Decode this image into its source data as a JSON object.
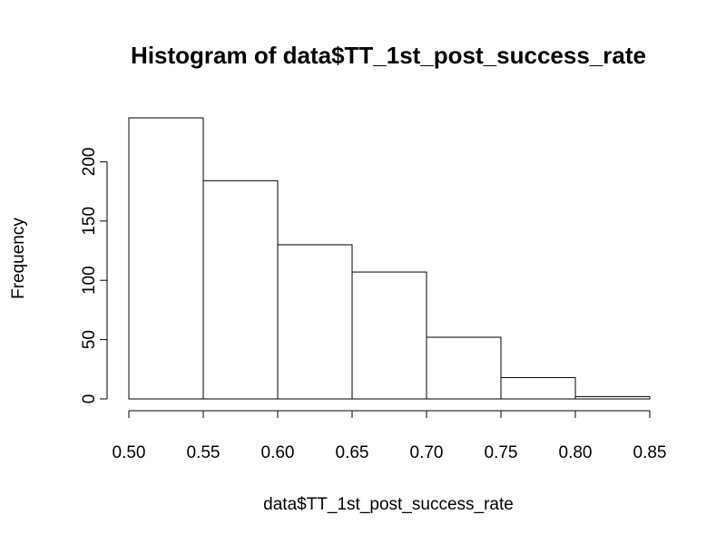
{
  "chart_data": {
    "type": "bar",
    "title": "Histogram of data$TT_1st_post_success_rate",
    "xlabel": "data$TT_1st_post_success_rate",
    "ylabel": "Frequency",
    "bins": [
      {
        "start": 0.5,
        "end": 0.55,
        "count": 237
      },
      {
        "start": 0.55,
        "end": 0.6,
        "count": 184
      },
      {
        "start": 0.6,
        "end": 0.65,
        "count": 130
      },
      {
        "start": 0.65,
        "end": 0.7,
        "count": 107
      },
      {
        "start": 0.7,
        "end": 0.75,
        "count": 52
      },
      {
        "start": 0.75,
        "end": 0.8,
        "count": 18
      },
      {
        "start": 0.8,
        "end": 0.85,
        "count": 2
      }
    ],
    "xlim": [
      0.5,
      0.85
    ],
    "ylim": [
      0,
      237
    ],
    "x_ticks": [
      "0.50",
      "0.55",
      "0.60",
      "0.65",
      "0.70",
      "0.75",
      "0.80",
      "0.85"
    ],
    "y_ticks": [
      "0",
      "50",
      "100",
      "150",
      "200"
    ],
    "grid": false,
    "colors": {
      "bar_fill": "#ffffff",
      "bar_stroke": "#000000"
    }
  }
}
